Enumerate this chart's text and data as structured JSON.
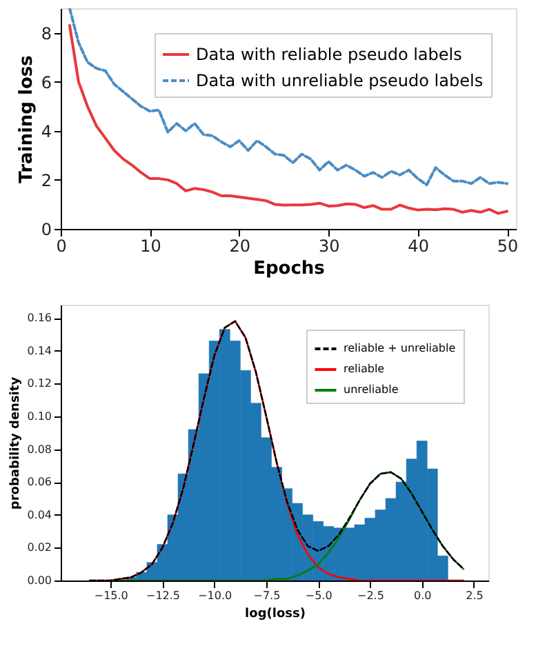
{
  "chart_data": [
    {
      "type": "line",
      "xlabel": "Epochs",
      "ylabel": "Training loss",
      "xlim": [
        0,
        51
      ],
      "ylim": [
        0,
        9
      ],
      "xticks": [
        0,
        10,
        20,
        30,
        40,
        50
      ],
      "yticks": [
        0,
        2,
        4,
        6,
        8
      ],
      "grid": false,
      "legend": "top right",
      "x": [
        1,
        2,
        3,
        4,
        5,
        6,
        7,
        8,
        9,
        10,
        11,
        12,
        13,
        14,
        15,
        16,
        17,
        18,
        19,
        20,
        21,
        22,
        23,
        24,
        25,
        26,
        27,
        28,
        29,
        30,
        31,
        32,
        33,
        34,
        35,
        36,
        37,
        38,
        39,
        40,
        41,
        42,
        43,
        44,
        45,
        46,
        47,
        48,
        49,
        50
      ],
      "series": [
        {
          "name": "Data with reliable pseudo labels",
          "color": "#e8383d",
          "line_style": "solid",
          "values": [
            8.3,
            6.0,
            5.0,
            4.2,
            3.7,
            3.2,
            2.85,
            2.6,
            2.3,
            2.05,
            2.05,
            2.0,
            1.85,
            1.55,
            1.65,
            1.6,
            1.5,
            1.35,
            1.35,
            1.3,
            1.25,
            1.2,
            1.15,
            1.0,
            0.97,
            0.98,
            0.98,
            1.0,
            1.05,
            0.93,
            0.95,
            1.02,
            1.0,
            0.87,
            0.95,
            0.8,
            0.8,
            0.97,
            0.85,
            0.77,
            0.8,
            0.78,
            0.82,
            0.8,
            0.68,
            0.75,
            0.68,
            0.8,
            0.63,
            0.72
          ]
        },
        {
          "name": "Data with unreliable pseudo labels",
          "color": "#4a8cc6",
          "line_style": "dashed",
          "values": [
            9.0,
            7.6,
            6.8,
            6.55,
            6.45,
            5.9,
            5.6,
            5.3,
            5.0,
            4.8,
            4.85,
            3.95,
            4.3,
            4.0,
            4.3,
            3.85,
            3.8,
            3.55,
            3.35,
            3.6,
            3.2,
            3.6,
            3.35,
            3.05,
            3.0,
            2.7,
            3.05,
            2.85,
            2.4,
            2.75,
            2.4,
            2.6,
            2.4,
            2.15,
            2.3,
            2.1,
            2.35,
            2.2,
            2.4,
            2.05,
            1.8,
            2.5,
            2.2,
            1.95,
            1.95,
            1.85,
            2.1,
            1.85,
            1.9,
            1.85
          ]
        }
      ]
    },
    {
      "type": "histogram",
      "xlabel": "log(loss)",
      "ylabel": "probability density",
      "xlim": [
        -17.4,
        3.2
      ],
      "ylim": [
        0,
        0.168
      ],
      "grid": false,
      "legend": "top right",
      "color": "#1f77b4",
      "xticks": [
        {
          "value": -15,
          "label": "−15.0"
        },
        {
          "value": -12.5,
          "label": "−12.5"
        },
        {
          "value": -10,
          "label": "−10.0"
        },
        {
          "value": -7.5,
          "label": "−7.5"
        },
        {
          "value": -5,
          "label": "−5.0"
        },
        {
          "value": -2.5,
          "label": "−2.5"
        },
        {
          "value": 0,
          "label": "0.0"
        },
        {
          "value": 2.5,
          "label": "2.5"
        }
      ],
      "yticks": [
        {
          "value": 0,
          "label": "0.00"
        },
        {
          "value": 0.02,
          "label": "0.02"
        },
        {
          "value": 0.04,
          "label": "0.04"
        },
        {
          "value": 0.06,
          "label": "0.06"
        },
        {
          "value": 0.08,
          "label": "0.08"
        },
        {
          "value": 0.1,
          "label": "0.10"
        },
        {
          "value": 0.12,
          "label": "0.12"
        },
        {
          "value": 0.14,
          "label": "0.14"
        },
        {
          "value": 0.16,
          "label": "0.16"
        }
      ],
      "bins": [
        -14.25,
        -13.75,
        -13.25,
        -12.75,
        -12.25,
        -11.75,
        -11.25,
        -10.75,
        -10.25,
        -9.75,
        -9.25,
        -8.75,
        -8.25,
        -7.75,
        -7.25,
        -6.75,
        -6.25,
        -5.75,
        -5.25,
        -4.75,
        -4.25,
        -3.75,
        -3.25,
        -2.75,
        -2.25,
        -1.75,
        -1.25,
        -0.75,
        -0.25,
        0.25,
        0.75,
        1.25
      ],
      "values": [
        0.002,
        0.005,
        0.011,
        0.022,
        0.04,
        0.065,
        0.092,
        0.126,
        0.146,
        0.153,
        0.146,
        0.128,
        0.108,
        0.087,
        0.069,
        0.056,
        0.047,
        0.04,
        0.036,
        0.033,
        0.032,
        0.032,
        0.034,
        0.038,
        0.043,
        0.05,
        0.06,
        0.074,
        0.085,
        0.068,
        0.015
      ],
      "series": [
        {
          "name": "reliable + unreliable",
          "type": "line",
          "color": "#000000",
          "line_style": "dashed",
          "x": [
            -16,
            -15.5,
            -15,
            -14.5,
            -14,
            -13.5,
            -13,
            -12.5,
            -12,
            -11.5,
            -11,
            -10.5,
            -10,
            -9.5,
            -9,
            -8.5,
            -8,
            -7.5,
            -7,
            -6.5,
            -6,
            -5.5,
            -5,
            -4.5,
            -4,
            -3.5,
            -3,
            -2.5,
            -2,
            -1.5,
            -1,
            -0.5,
            0,
            0.5,
            1,
            1.5,
            2
          ],
          "values": [
            0.0,
            0.0,
            0.0,
            0.001,
            0.002,
            0.005,
            0.01,
            0.02,
            0.035,
            0.056,
            0.083,
            0.111,
            0.137,
            0.154,
            0.158,
            0.148,
            0.127,
            0.1,
            0.072,
            0.048,
            0.031,
            0.021,
            0.018,
            0.021,
            0.028,
            0.038,
            0.049,
            0.059,
            0.065,
            0.066,
            0.062,
            0.053,
            0.042,
            0.031,
            0.021,
            0.013,
            0.007
          ]
        },
        {
          "name": "reliable",
          "type": "line",
          "color": "#ff0000",
          "line_style": "solid",
          "x": [
            -16,
            -15.5,
            -15,
            -14.5,
            -14,
            -13.5,
            -13,
            -12.5,
            -12,
            -11.5,
            -11,
            -10.5,
            -10,
            -9.5,
            -9,
            -8.5,
            -8,
            -7.5,
            -7,
            -6.5,
            -6,
            -5.5,
            -5,
            -4.5,
            -4,
            -3.5,
            -3,
            -2.5,
            -2,
            -1.5,
            -1,
            -0.5,
            0,
            0.5,
            1,
            1.5,
            2
          ],
          "values": [
            0.0,
            0.0,
            0.0,
            0.001,
            0.002,
            0.005,
            0.01,
            0.02,
            0.035,
            0.056,
            0.083,
            0.111,
            0.137,
            0.154,
            0.158,
            0.148,
            0.127,
            0.1,
            0.072,
            0.047,
            0.028,
            0.016,
            0.008,
            0.004,
            0.002,
            0.001,
            0.0,
            0.0,
            0.0,
            0.0,
            0.0,
            0.0,
            0.0,
            0.0,
            0.0,
            0.0,
            0.0
          ]
        },
        {
          "name": "unreliable",
          "type": "line",
          "color": "#008000",
          "line_style": "solid",
          "x": [
            -15,
            -14.5,
            -14,
            -13.5,
            -13,
            -12.5,
            -12,
            -11.5,
            -11,
            -10.5,
            -10,
            -9.5,
            -9,
            -8.5,
            -8,
            -7.5,
            -7,
            -6.5,
            -6,
            -5.5,
            -5,
            -4.5,
            -4,
            -3.5,
            -3,
            -2.5,
            -2,
            -1.5,
            -1,
            -0.5,
            0,
            0.5,
            1,
            1.5,
            2
          ],
          "values": [
            0.0,
            0.0,
            0.0,
            0.0,
            0.0,
            0.0,
            0.0,
            0.0,
            0.0,
            0.0,
            0.0,
            0.0,
            0.0,
            0.0,
            0.0,
            0.0,
            0.001,
            0.001,
            0.003,
            0.006,
            0.01,
            0.017,
            0.026,
            0.037,
            0.049,
            0.059,
            0.065,
            0.066,
            0.062,
            0.053,
            0.042,
            0.031,
            0.021,
            0.013,
            0.007
          ]
        }
      ]
    }
  ]
}
